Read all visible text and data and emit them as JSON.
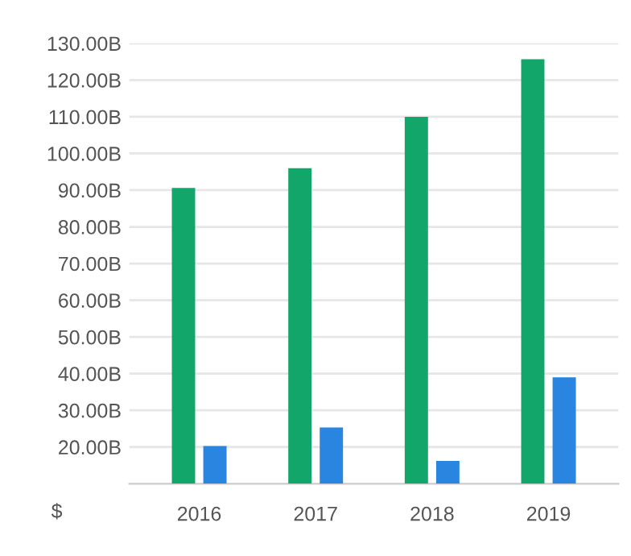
{
  "chart_data": {
    "type": "bar",
    "categories": [
      "2016",
      "2017",
      "2018",
      "2019"
    ],
    "series": [
      {
        "color": "#12a66b",
        "values": [
          90.6,
          96,
          110,
          125.7
        ]
      },
      {
        "color": "#2a85e0",
        "values": [
          20.3,
          25.3,
          16.2,
          39
        ]
      }
    ],
    "ylim": [
      10,
      130
    ],
    "yticks": [
      {
        "value": 20,
        "label": "20.00B"
      },
      {
        "value": 30,
        "label": "30.00B"
      },
      {
        "value": 40,
        "label": "40.00B"
      },
      {
        "value": 50,
        "label": "50.00B"
      },
      {
        "value": 60,
        "label": "60.00B"
      },
      {
        "value": 70,
        "label": "70.00B"
      },
      {
        "value": 80,
        "label": "80.00B"
      },
      {
        "value": 90,
        "label": "90.00B"
      },
      {
        "value": 100,
        "label": "100.00B"
      },
      {
        "value": 110,
        "label": "110.00B"
      },
      {
        "value": 120,
        "label": "120.00B"
      },
      {
        "value": 130,
        "label": "130.00B"
      }
    ],
    "grid": "y",
    "annotations": [
      "$"
    ]
  }
}
